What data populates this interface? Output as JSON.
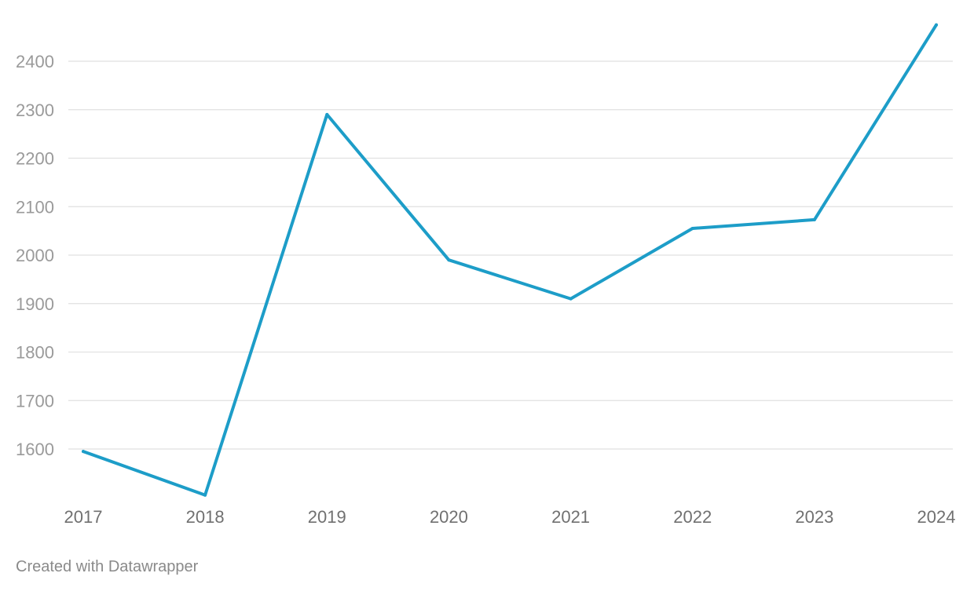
{
  "colors": {
    "line": "#1d9dc8",
    "grid": "#e1e1e1",
    "ytick_text": "#9a9a9a",
    "xtick_text": "#707070",
    "credit_text": "#8a8a8a"
  },
  "credit": "Created with Datawrapper",
  "chart_data": {
    "type": "line",
    "title": "",
    "xlabel": "",
    "ylabel": "",
    "x": [
      "2017",
      "2018",
      "2019",
      "2020",
      "2021",
      "2022",
      "2023",
      "2024"
    ],
    "series": [
      {
        "values": [
          1595,
          1505,
          2290,
          1990,
          1910,
          2055,
          2073,
          2475
        ]
      }
    ],
    "yticks": [
      1600,
      1700,
      1800,
      1900,
      2000,
      2100,
      2200,
      2300,
      2400
    ],
    "ylim": [
      1500,
      2480
    ],
    "grid": true,
    "legend": "none"
  }
}
